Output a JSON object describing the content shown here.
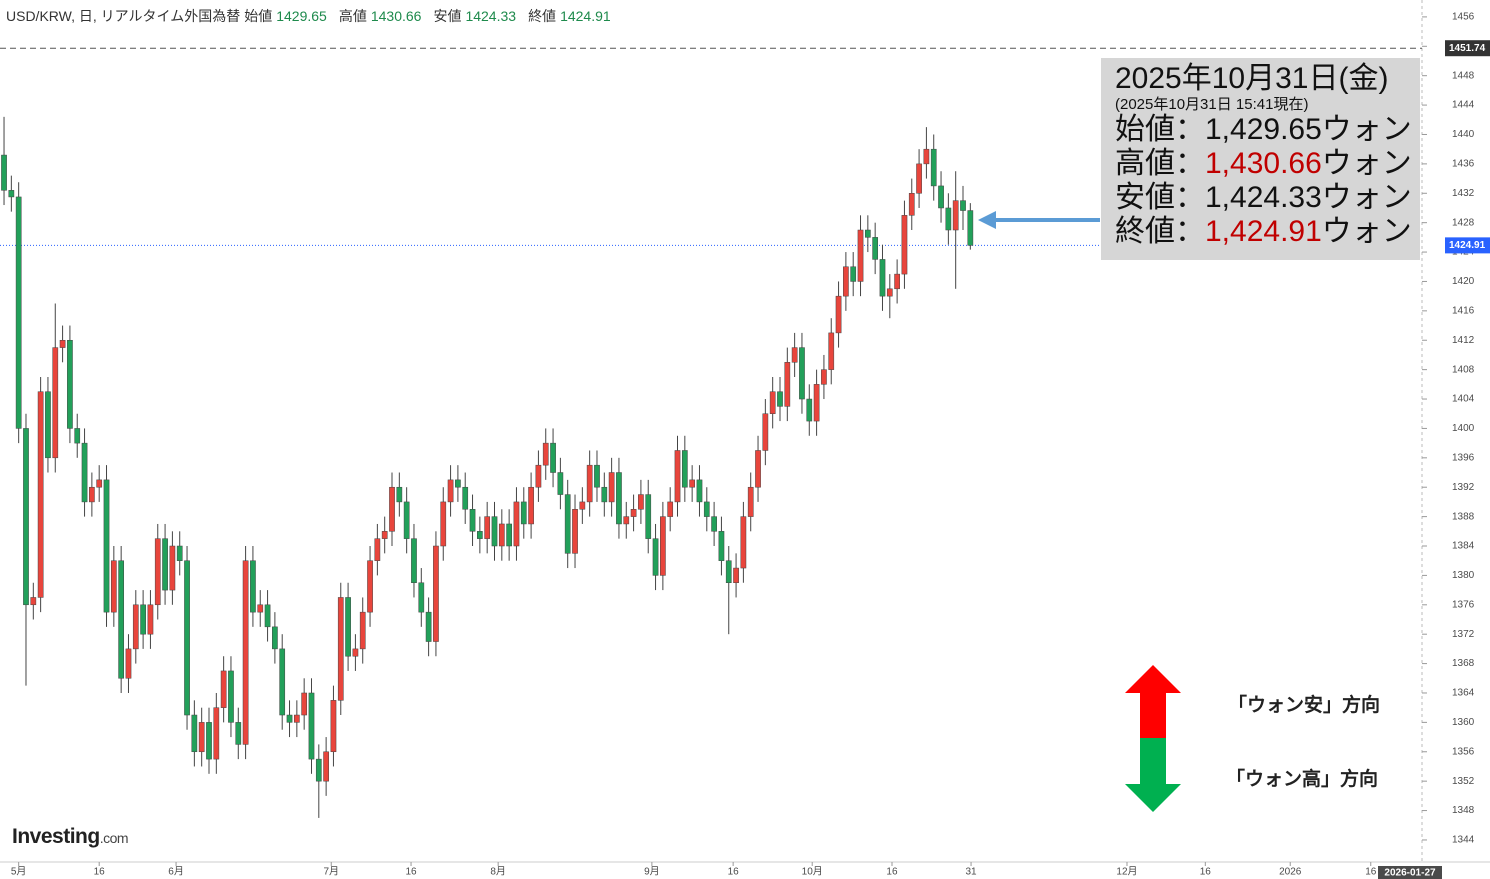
{
  "chart_data": {
    "type": "candlestick",
    "title": "USD/KRW, 日, リアルタイム外国為替",
    "header": [
      {
        "label": "始値",
        "path": "open"
      },
      {
        "label": "高値",
        "path": "high"
      },
      {
        "label": "安値",
        "path": "low"
      },
      {
        "label": "終値",
        "path": "close"
      }
    ],
    "up_color": "#e8453c",
    "down_color": "#22a05a",
    "open": [
      1437.2,
      1432.4,
      1431.5,
      1400,
      1376,
      1377,
      1405,
      1396,
      1411,
      1412,
      1400,
      1398,
      1390,
      1392,
      1393,
      1375,
      1382,
      1366,
      1370,
      1376,
      1372,
      1376,
      1385,
      1378,
      1384,
      1382,
      1361,
      1356,
      1360,
      1355,
      1362,
      1367,
      1360,
      1357,
      1382,
      1375,
      1376,
      1373,
      1370,
      1361,
      1360,
      1361,
      1364,
      1355,
      1352,
      1356,
      1363,
      1377,
      1369,
      1370,
      1375,
      1382,
      1385,
      1386,
      1392,
      1390,
      1385,
      1379,
      1375,
      1371,
      1384,
      1390,
      1393,
      1392,
      1389,
      1386,
      1385,
      1388,
      1384,
      1387,
      1384,
      1390,
      1387,
      1392,
      1395,
      1398,
      1394,
      1391,
      1383,
      1389,
      1390,
      1395,
      1392,
      1390,
      1394,
      1387,
      1388,
      1389,
      1391,
      1385,
      1380,
      1388,
      1390,
      1397,
      1392,
      1393,
      1390,
      1388,
      1386,
      1382,
      1379,
      1381,
      1388,
      1392,
      1397,
      1402,
      1405,
      1403,
      1409,
      1411,
      1404,
      1401,
      1406,
      1408,
      1413,
      1418,
      1422,
      1420,
      1427,
      1426,
      1423,
      1418,
      1419,
      1421,
      1429,
      1432,
      1436,
      1438,
      1433,
      1430,
      1427,
      1431,
      1429.65
    ],
    "high": [
      1442.4,
      1434.4,
      1433.5,
      1402,
      1379,
      1407,
      1407,
      1417,
      1414,
      1414,
      1402,
      1400,
      1394,
      1395,
      1395,
      1384,
      1384,
      1372,
      1378,
      1378,
      1378,
      1387,
      1387,
      1386,
      1386,
      1384,
      1363,
      1362,
      1362,
      1364,
      1369,
      1369,
      1362,
      1384,
      1384,
      1378,
      1378,
      1375,
      1372,
      1363,
      1363,
      1366,
      1366,
      1357,
      1358,
      1365,
      1379,
      1379,
      1372,
      1377,
      1384,
      1387,
      1388,
      1394,
      1394,
      1392,
      1387,
      1381,
      1377,
      1386,
      1392,
      1395,
      1395,
      1394,
      1391,
      1388,
      1390,
      1390,
      1389,
      1389,
      1392,
      1392,
      1394,
      1397,
      1400,
      1400,
      1396,
      1393,
      1391,
      1392,
      1397,
      1397,
      1394,
      1396,
      1396,
      1390,
      1391,
      1393,
      1393,
      1387,
      1390,
      1392,
      1399,
      1399,
      1395,
      1395,
      1392,
      1390,
      1388,
      1384,
      1383,
      1390,
      1394,
      1399,
      1404,
      1407,
      1407,
      1411,
      1413,
      1413,
      1406,
      1408,
      1410,
      1415,
      1420,
      1424,
      1424,
      1429,
      1429,
      1428,
      1425,
      1421,
      1423,
      1431,
      1434,
      1438,
      1441,
      1440,
      1435,
      1432,
      1435,
      1433,
      1430.66
    ],
    "low": [
      1430.4,
      1429.5,
      1398,
      1365,
      1374,
      1375,
      1394,
      1394,
      1409,
      1398,
      1396,
      1388,
      1388,
      1390,
      1373,
      1373,
      1364,
      1364,
      1368,
      1370,
      1370,
      1374,
      1376,
      1376,
      1380,
      1359,
      1354,
      1354,
      1353,
      1353,
      1360,
      1358,
      1355,
      1355,
      1373,
      1373,
      1371,
      1368,
      1359,
      1358,
      1358,
      1359,
      1353,
      1347,
      1350,
      1354,
      1361,
      1367,
      1367,
      1368,
      1373,
      1380,
      1383,
      1384,
      1388,
      1383,
      1377,
      1373,
      1369,
      1369,
      1382,
      1388,
      1390,
      1387,
      1384,
      1383,
      1383,
      1382,
      1382,
      1382,
      1382,
      1385,
      1385,
      1390,
      1393,
      1392,
      1389,
      1381,
      1381,
      1387,
      1388,
      1390,
      1388,
      1388,
      1385,
      1385,
      1386,
      1387,
      1383,
      1378,
      1378,
      1386,
      1388,
      1390,
      1390,
      1388,
      1386,
      1384,
      1380,
      1372,
      1377,
      1379,
      1386,
      1390,
      1395,
      1400,
      1401,
      1401,
      1407,
      1402,
      1399,
      1399,
      1404,
      1406,
      1411,
      1416,
      1418,
      1418,
      1424,
      1421,
      1416,
      1415,
      1417,
      1419,
      1427,
      1430,
      1434,
      1431,
      1428,
      1425,
      1419,
      1427,
      1424.33
    ],
    "close": [
      1432.4,
      1431.5,
      1400,
      1376,
      1377,
      1405,
      1396,
      1411,
      1412,
      1400,
      1398,
      1390,
      1392,
      1393,
      1375,
      1382,
      1366,
      1370,
      1376,
      1372,
      1376,
      1385,
      1378,
      1384,
      1382,
      1361,
      1356,
      1360,
      1355,
      1362,
      1367,
      1360,
      1357,
      1382,
      1375,
      1376,
      1373,
      1370,
      1361,
      1360,
      1361,
      1364,
      1355,
      1352,
      1356,
      1363,
      1377,
      1369,
      1370,
      1375,
      1382,
      1385,
      1386,
      1392,
      1390,
      1385,
      1379,
      1375,
      1371,
      1384,
      1390,
      1393,
      1392,
      1389,
      1386,
      1385,
      1388,
      1384,
      1387,
      1384,
      1390,
      1387,
      1392,
      1395,
      1398,
      1394,
      1391,
      1383,
      1389,
      1390,
      1395,
      1392,
      1390,
      1394,
      1387,
      1388,
      1389,
      1391,
      1385,
      1380,
      1388,
      1390,
      1397,
      1392,
      1393,
      1390,
      1388,
      1386,
      1382,
      1379,
      1381,
      1388,
      1392,
      1397,
      1402,
      1405,
      1403,
      1409,
      1411,
      1404,
      1401,
      1406,
      1408,
      1413,
      1418,
      1422,
      1420,
      1427,
      1426,
      1423,
      1418,
      1419,
      1421,
      1429,
      1432,
      1436,
      1438,
      1433,
      1430,
      1427,
      1431,
      1429.65,
      1424.91
    ],
    "xlim": [
      -0.55,
      193.7
    ],
    "xticks": [
      {
        "value": 2,
        "label": "5月"
      },
      {
        "value": 13,
        "label": "16"
      },
      {
        "value": 23.5,
        "label": "6月"
      },
      {
        "value": 44.7,
        "label": "7月"
      },
      {
        "value": 55.6,
        "label": "16"
      },
      {
        "value": 67.5,
        "label": "8月"
      },
      {
        "value": 88.5,
        "label": "9月"
      },
      {
        "value": 99.6,
        "label": "16"
      },
      {
        "value": 110.4,
        "label": "10月"
      },
      {
        "value": 121.3,
        "label": "16"
      },
      {
        "value": 132.1,
        "label": "31"
      },
      {
        "value": 153.4,
        "label": "12月"
      },
      {
        "value": 164.1,
        "label": "16"
      },
      {
        "value": 175.7,
        "label": "2026"
      },
      {
        "value": 186.7,
        "label": "16"
      }
    ],
    "x_end_label": "2026-01-27",
    "ylim": [
      1341,
      1458.3
    ],
    "yticks": [
      1344,
      1348,
      1352,
      1356,
      1360,
      1364,
      1368,
      1372,
      1376,
      1380,
      1384,
      1388,
      1392,
      1396,
      1400,
      1404,
      1408,
      1412,
      1416,
      1420,
      1424,
      1428,
      1432,
      1436,
      1440,
      1444,
      1448,
      1452,
      1456
    ],
    "reference_line": 1451.74,
    "annotation": {
      "date": "2025年10月31日(金)",
      "as_of": "(2025年10月31日 15:41現在)",
      "rows": [
        {
          "label": "始値：",
          "value_label": "1,429.65",
          "unit": "ウォン",
          "color": "#111111"
        },
        {
          "label": "高値：",
          "value_label": "1,430.66",
          "unit": "ウォン",
          "color": "#c00000"
        },
        {
          "label": "安値：",
          "value_label": "1,424.33",
          "unit": "ウォン",
          "color": "#111111"
        },
        {
          "label": "終値：",
          "value_label": "1,424.91",
          "unit": "ウォン",
          "color": "#c00000"
        }
      ]
    },
    "legend": {
      "up": "「ウォン安」方向",
      "down": "「ウォン高」方向"
    },
    "logo": {
      "name": "Investing",
      "suffix": ".com"
    }
  }
}
